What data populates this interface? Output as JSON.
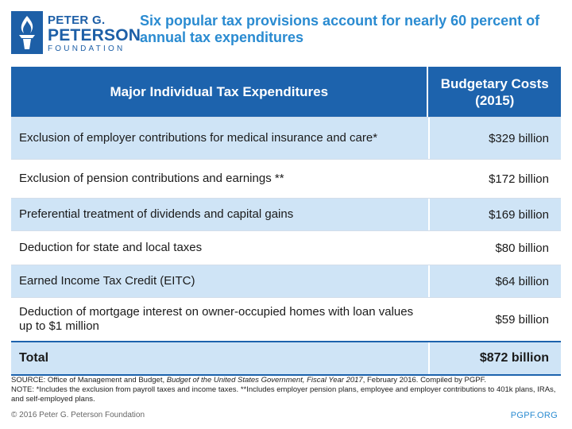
{
  "logo": {
    "line1": "PETER G.",
    "line2": "PETERSON",
    "line3": "FOUNDATION",
    "icon": "torch-flame-icon"
  },
  "title": "Six popular tax provisions account for nearly 60 percent of annual tax expenditures",
  "colors": {
    "header_blue": "#1d63ad",
    "row_shade": "#cfe4f6",
    "title_blue": "#2a8bd1"
  },
  "chart_data": {
    "type": "table",
    "columns": [
      "Major Individual Tax Expenditures",
      "Budgetary Costs (2015)"
    ],
    "rows": [
      {
        "label": "Exclusion of employer contributions for medical insurance and care*",
        "value": "$329 billion",
        "shaded": true,
        "height": 52
      },
      {
        "label": "Exclusion of pension contributions and earnings **",
        "value": "$172 billion",
        "shaded": false,
        "height": 48
      },
      {
        "label": "Preferential treatment of dividends and capital gains",
        "value": "$169 billion",
        "shaded": true,
        "height": 40
      },
      {
        "label": "Deduction for state and local taxes",
        "value": "$80 billion",
        "shaded": false,
        "height": 42
      },
      {
        "label": "Earned Income Tax Credit (EITC)",
        "value": "$64 billion",
        "shaded": true,
        "height": 40
      },
      {
        "label": "Deduction of mortgage interest on owner-occupied homes with loan values up to $1 million",
        "value": "$59 billion",
        "shaded": false,
        "height": 54
      }
    ],
    "total": {
      "label": "Total",
      "value": "$872 billion"
    }
  },
  "source": {
    "prefix": "SOURCE: Office of Management and Budget, ",
    "title": "Budget of the United States Government, Fiscal Year 2017",
    "suffix": ", February 2016. Compiled by PGPF.",
    "note": "NOTE: *Includes the exclusion from payroll taxes and income taxes. **Includes employer pension plans, employee and employer contributions to 401k plans, IRAs, and self-employed plans."
  },
  "footer": {
    "copyright": "© 2016 Peter G. Peterson Foundation",
    "site": "PGPF.ORG"
  }
}
